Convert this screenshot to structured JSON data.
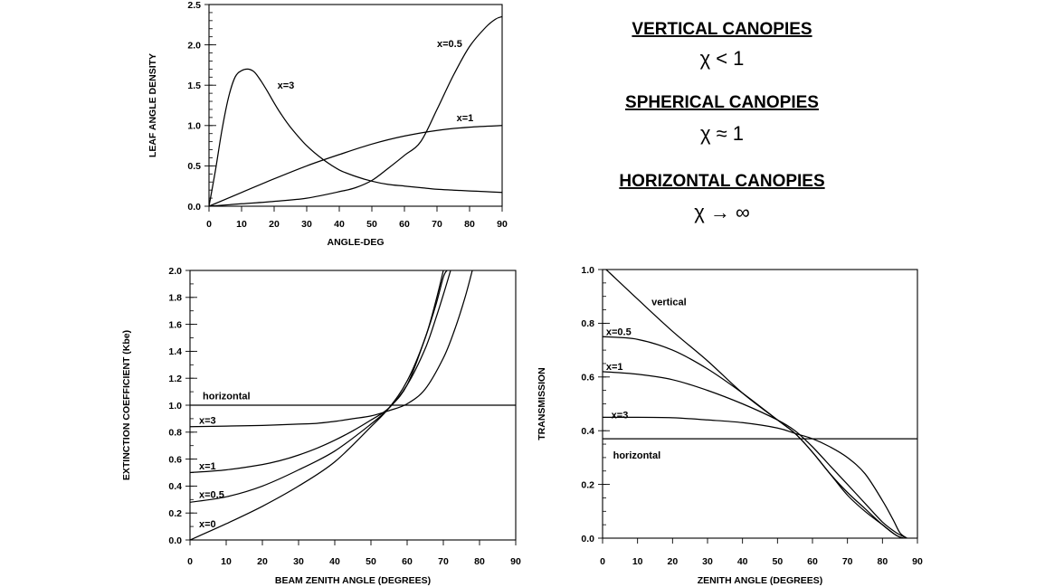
{
  "canopy_legend": [
    {
      "heading": "VERTICAL CANOPIES",
      "formula": "χ < 1"
    },
    {
      "heading": "SPHERICAL CANOPIES",
      "formula": "χ ≈ 1"
    },
    {
      "heading": "HORIZONTAL CANOPIES",
      "formula": "χ → ∞"
    }
  ],
  "chart_data": [
    {
      "id": "leaf-angle-density",
      "type": "line",
      "title": "",
      "xlabel": "ANGLE-DEG",
      "ylabel": "LEAF ANGLE DENSITY",
      "xlim": [
        0,
        90
      ],
      "ylim": [
        0,
        2.5
      ],
      "x_ticks": [
        0,
        10,
        20,
        30,
        40,
        50,
        60,
        70,
        80,
        90
      ],
      "y_ticks": [
        0.0,
        0.5,
        1.0,
        1.5,
        2.0,
        2.5
      ],
      "y_tick_labels": [
        "0.0",
        "0.5",
        "1.0",
        "1.5",
        "2.0",
        "2.5"
      ],
      "y_minor_step": 0.1,
      "grid": false,
      "series": [
        {
          "name": "x=3",
          "label": {
            "x": 21,
            "y": 1.5
          },
          "x": [
            0,
            2,
            4,
            6,
            8,
            10,
            12,
            14,
            16,
            18,
            20,
            22,
            25,
            30,
            35,
            40,
            45,
            50,
            55,
            60,
            65,
            70,
            75,
            80,
            85,
            90
          ],
          "y": [
            0,
            0.45,
            0.95,
            1.35,
            1.6,
            1.68,
            1.7,
            1.66,
            1.55,
            1.42,
            1.28,
            1.15,
            0.98,
            0.75,
            0.58,
            0.45,
            0.37,
            0.31,
            0.27,
            0.25,
            0.23,
            0.21,
            0.2,
            0.19,
            0.18,
            0.17
          ]
        },
        {
          "name": "x=1",
          "label": {
            "x": 76,
            "y": 1.1
          },
          "x": [
            0,
            10,
            20,
            30,
            40,
            50,
            60,
            70,
            80,
            90
          ],
          "y": [
            0,
            0.17,
            0.34,
            0.5,
            0.64,
            0.77,
            0.87,
            0.94,
            0.98,
            1.0
          ]
        },
        {
          "name": "x=0.5",
          "label": {
            "x": 70,
            "y": 2.02
          },
          "x": [
            0,
            10,
            20,
            30,
            40,
            45,
            50,
            55,
            60,
            65,
            70,
            75,
            80,
            85,
            88,
            90
          ],
          "y": [
            0,
            0.03,
            0.06,
            0.1,
            0.18,
            0.23,
            0.32,
            0.47,
            0.63,
            0.8,
            1.2,
            1.62,
            1.98,
            2.22,
            2.32,
            2.35
          ]
        }
      ]
    },
    {
      "id": "extinction-coefficient",
      "type": "line",
      "title": "",
      "xlabel": "BEAM ZENITH ANGLE (DEGREES)",
      "ylabel": "EXTINCTION COEFFICIENT (Kbe)",
      "xlim": [
        0,
        90
      ],
      "ylim": [
        0,
        2.0
      ],
      "x_ticks": [
        0,
        10,
        20,
        30,
        40,
        50,
        60,
        70,
        80,
        90
      ],
      "y_ticks": [
        0.0,
        0.2,
        0.4,
        0.6,
        0.8,
        1.0,
        1.2,
        1.4,
        1.6,
        1.8,
        2.0
      ],
      "y_tick_labels": [
        "0.0",
        "0.2",
        "0.4",
        "0.6",
        "0.8",
        "1.0",
        "1.2",
        "1.4",
        "1.6",
        "1.8",
        "2.0"
      ],
      "y_minor_step": 0.1,
      "grid": false,
      "series": [
        {
          "name": "horizontal",
          "label": {
            "x": 3.5,
            "y": 1.07
          },
          "x": [
            0,
            90
          ],
          "y": [
            1.0,
            1.0
          ]
        },
        {
          "name": "x=3",
          "label": {
            "x": 2.5,
            "y": 0.89
          },
          "x": [
            0,
            10,
            20,
            30,
            35,
            40,
            45,
            50,
            55,
            60,
            65,
            70,
            73,
            76,
            78
          ],
          "y": [
            0.84,
            0.845,
            0.85,
            0.86,
            0.865,
            0.88,
            0.9,
            0.92,
            0.96,
            1.01,
            1.12,
            1.35,
            1.55,
            1.8,
            2.0
          ]
        },
        {
          "name": "x=1",
          "label": {
            "x": 2.5,
            "y": 0.55
          },
          "x": [
            0,
            10,
            20,
            25,
            30,
            35,
            40,
            45,
            50,
            55,
            60,
            65,
            68,
            70,
            72
          ],
          "y": [
            0.5,
            0.52,
            0.56,
            0.59,
            0.63,
            0.68,
            0.74,
            0.81,
            0.89,
            0.98,
            1.15,
            1.42,
            1.65,
            1.82,
            2.0
          ]
        },
        {
          "name": "x=0.5",
          "label": {
            "x": 2.5,
            "y": 0.34
          },
          "x": [
            0,
            10,
            20,
            30,
            40,
            50,
            55,
            60,
            65,
            68,
            70,
            71
          ],
          "y": [
            0.28,
            0.32,
            0.4,
            0.52,
            0.66,
            0.86,
            0.98,
            1.15,
            1.5,
            1.75,
            1.95,
            2.0
          ]
        },
        {
          "name": "x=0",
          "label": {
            "x": 2.5,
            "y": 0.12
          },
          "x": [
            0,
            10,
            20,
            30,
            40,
            50,
            55,
            60,
            65,
            68,
            70
          ],
          "y": [
            0,
            0.12,
            0.25,
            0.4,
            0.58,
            0.84,
            0.98,
            1.18,
            1.5,
            1.78,
            2.0
          ]
        }
      ]
    },
    {
      "id": "transmission",
      "type": "line",
      "title": "",
      "xlabel": "ZENITH ANGLE (DEGREES)",
      "ylabel": "TRANSMISSION",
      "xlim": [
        0,
        90
      ],
      "ylim": [
        0,
        1.0
      ],
      "x_ticks": [
        0,
        10,
        20,
        30,
        40,
        50,
        60,
        70,
        80,
        90
      ],
      "y_ticks": [
        0.0,
        0.2,
        0.4,
        0.6,
        0.8,
        1.0
      ],
      "y_tick_labels": [
        "0.0",
        "0.2",
        "0.4",
        "0.6",
        "0.8",
        "1.0"
      ],
      "y_minor_step": 0.05,
      "grid": false,
      "series": [
        {
          "name": "horizontal",
          "label": {
            "x": 3,
            "y": 0.31
          },
          "x": [
            0,
            90
          ],
          "y": [
            0.37,
            0.37
          ]
        },
        {
          "name": "vertical",
          "label": {
            "x": 14,
            "y": 0.88
          },
          "x": [
            1,
            10,
            20,
            30,
            40,
            50,
            55,
            60,
            65,
            70,
            75,
            80,
            84,
            86
          ],
          "y": [
            1.0,
            0.89,
            0.77,
            0.66,
            0.54,
            0.44,
            0.39,
            0.32,
            0.24,
            0.16,
            0.1,
            0.05,
            0.01,
            0.0
          ]
        },
        {
          "name": "x=0.5",
          "label": {
            "x": 1,
            "y": 0.77
          },
          "x": [
            0,
            10,
            20,
            30,
            40,
            50,
            55,
            60,
            65,
            70,
            75,
            80,
            84,
            86
          ],
          "y": [
            0.75,
            0.74,
            0.7,
            0.63,
            0.54,
            0.44,
            0.39,
            0.32,
            0.24,
            0.17,
            0.11,
            0.05,
            0.01,
            0.0
          ]
        },
        {
          "name": "x=1",
          "label": {
            "x": 1,
            "y": 0.64
          },
          "x": [
            0,
            10,
            20,
            30,
            40,
            50,
            55,
            60,
            65,
            70,
            75,
            80,
            84,
            87
          ],
          "y": [
            0.62,
            0.61,
            0.59,
            0.55,
            0.5,
            0.44,
            0.4,
            0.34,
            0.27,
            0.2,
            0.13,
            0.06,
            0.02,
            0.0
          ]
        },
        {
          "name": "x=3",
          "label": {
            "x": 2.5,
            "y": 0.46
          },
          "x": [
            0,
            10,
            20,
            30,
            40,
            50,
            55,
            60,
            65,
            70,
            75,
            80,
            83,
            85,
            87
          ],
          "y": [
            0.45,
            0.45,
            0.448,
            0.44,
            0.43,
            0.41,
            0.39,
            0.37,
            0.34,
            0.3,
            0.24,
            0.14,
            0.07,
            0.02,
            0.0
          ]
        }
      ]
    }
  ]
}
